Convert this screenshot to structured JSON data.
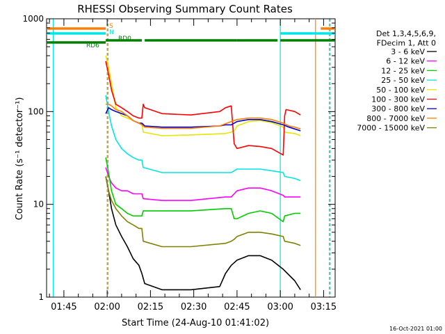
{
  "chart_data": {
    "type": "line",
    "title": "RHESSI Observing Summary Count Rates",
    "xlabel": "Start Time (24-Aug-10 01:41:02)",
    "ylabel": "Count Rate (s⁻¹ detector⁻¹)",
    "yscale": "log",
    "ylim": [
      1,
      1000
    ],
    "xlim_minutes": [
      -2,
      98
    ],
    "x_tick_labels": [
      "01:45",
      "02:00",
      "02:15",
      "02:30",
      "02:45",
      "03:00",
      "03:15"
    ],
    "x_tick_minutes": [
      4,
      19,
      34,
      49,
      64,
      79,
      94
    ],
    "y_tick_labels": [
      "1",
      "10",
      "100",
      "1000"
    ],
    "y_ticks": [
      1,
      10,
      100,
      1000
    ],
    "legend_header": [
      "Det 1,3,4,5,6,9,",
      "FDecim 1, Att 0"
    ],
    "series": [
      {
        "name": "3 - 6 keV",
        "color": "#000000",
        "x": [
          18.5,
          19.5,
          20.5,
          22,
          24,
          26,
          28,
          30,
          31,
          32,
          38,
          48,
          58,
          60,
          62,
          64,
          68,
          72,
          76,
          80,
          84,
          86
        ],
        "y": [
          20,
          14,
          9,
          6,
          4.5,
          3.5,
          2.6,
          2.2,
          1.8,
          1.4,
          1.2,
          1.2,
          1.3,
          1.8,
          2.2,
          2.5,
          2.8,
          2.8,
          2.5,
          2.0,
          1.5,
          1.2
        ]
      },
      {
        "name": "6 - 12 keV",
        "color": "#ff00ff",
        "x": [
          18.5,
          19.5,
          20.5,
          22,
          24,
          26,
          28,
          30,
          31,
          31.5,
          38,
          48,
          60,
          62,
          63,
          64,
          68,
          72,
          76,
          80,
          80.5,
          84,
          86
        ],
        "y": [
          25,
          20,
          17,
          15,
          14,
          14,
          13,
          13,
          13,
          11.5,
          11,
          11,
          12,
          12,
          13,
          14,
          15,
          15,
          14,
          12.5,
          12,
          12,
          12
        ]
      },
      {
        "name": "12 - 25 keV",
        "color": "#00cc00",
        "x": [
          18.5,
          19.5,
          20.5,
          22,
          24,
          26,
          28,
          30,
          31,
          31.5,
          38,
          48,
          60,
          62,
          63,
          64,
          68,
          72,
          76,
          80,
          80.5,
          84,
          86
        ],
        "y": [
          32,
          22,
          14,
          10,
          9,
          8,
          7.5,
          7.5,
          7.5,
          8.5,
          8.5,
          8.5,
          9,
          9,
          7,
          7,
          8,
          8.5,
          8,
          6.5,
          7.5,
          8,
          8
        ]
      },
      {
        "name": "25 - 50 keV",
        "color": "#00e5e5",
        "x": [
          18.5,
          19.5,
          20.5,
          22,
          24,
          26,
          28,
          30,
          31,
          31.5,
          38,
          48,
          60,
          62,
          63,
          64,
          68,
          72,
          76,
          80,
          80.5,
          84,
          86
        ],
        "y": [
          150,
          100,
          70,
          50,
          40,
          35,
          32,
          30,
          30,
          25,
          22,
          22,
          22,
          22,
          23,
          24,
          24,
          24,
          23,
          22,
          20,
          19,
          18
        ]
      },
      {
        "name": "50 - 100 keV",
        "color": "#e5e500",
        "x": [
          18.5,
          19.5,
          20.5,
          22,
          24,
          26,
          28,
          30,
          31,
          31.5,
          38,
          48,
          60,
          62,
          63,
          64,
          68,
          72,
          76,
          80,
          80.5,
          84,
          86
        ],
        "y": [
          400,
          300,
          200,
          110,
          90,
          85,
          80,
          75,
          75,
          60,
          55,
          56,
          58,
          60,
          62,
          70,
          78,
          80,
          76,
          68,
          60,
          58,
          55
        ]
      },
      {
        "name": "100 - 300 keV",
        "color": "#ff0000",
        "x": [
          18.5,
          19.5,
          20.5,
          22,
          24,
          26,
          28,
          30,
          31,
          31.5,
          32,
          38,
          48,
          58,
          60,
          62,
          63,
          64,
          68,
          72,
          76,
          80,
          80.5,
          81,
          84,
          86
        ],
        "y": [
          350,
          250,
          170,
          120,
          110,
          100,
          90,
          85,
          85,
          120,
          110,
          95,
          92,
          100,
          110,
          115,
          45,
          40,
          43,
          42,
          40,
          34,
          90,
          105,
          100,
          92
        ]
      },
      {
        "name": "300 - 800 keV",
        "color": "#0000cc",
        "x": [
          18.5,
          19.5,
          20.5,
          22,
          24,
          26,
          28,
          30,
          31,
          32,
          38,
          48,
          58,
          60,
          62,
          64,
          68,
          72,
          76,
          80,
          82,
          84,
          86
        ],
        "y": [
          95,
          110,
          105,
          100,
          95,
          90,
          80,
          75,
          75,
          70,
          68,
          68,
          70,
          72,
          72,
          78,
          82,
          82,
          78,
          72,
          68,
          65,
          62
        ]
      },
      {
        "name": "800 - 7000 keV",
        "color": "#ff8000",
        "x": [
          18.5,
          19.5,
          20.5,
          22,
          24,
          26,
          28,
          30,
          31,
          32,
          38,
          48,
          58,
          60,
          62,
          64,
          68,
          72,
          76,
          80,
          82,
          84,
          86
        ],
        "y": [
          120,
          120,
          115,
          105,
          100,
          90,
          80,
          75,
          72,
          68,
          66,
          66,
          70,
          74,
          78,
          82,
          85,
          85,
          82,
          75,
          70,
          68,
          65
        ]
      },
      {
        "name": "7000 - 15000 keV",
        "color": "#808000",
        "x": [
          18.5,
          19.5,
          20.5,
          22,
          24,
          26,
          28,
          30,
          31,
          31.5,
          38,
          48,
          60,
          62,
          63,
          64,
          68,
          72,
          76,
          80,
          80.5,
          84,
          86
        ],
        "y": [
          20,
          14,
          11,
          9,
          7.5,
          6.5,
          6,
          5.5,
          5.5,
          4,
          3.5,
          3.5,
          3.8,
          4,
          4.2,
          4.5,
          5,
          5,
          4.8,
          4.5,
          4,
          3.8,
          3.6
        ]
      }
    ],
    "state_bars": [
      {
        "label": "S",
        "color": "#ff8000",
        "segments": [
          [
            -2,
            18.5
          ],
          [
            93,
            98
          ]
        ]
      },
      {
        "label": "N",
        "color": "#00e5e5",
        "segments": [
          [
            -2,
            18.5
          ],
          [
            79,
            98
          ]
        ]
      },
      {
        "label": "RD0",
        "color": "#008000",
        "segments": [
          [
            18.5,
            31
          ],
          [
            32,
            64
          ],
          [
            64,
            78
          ],
          [
            79,
            98
          ]
        ]
      },
      {
        "label": "RD6",
        "color": "#008000",
        "segments": [
          [
            -2,
            18.5
          ]
        ]
      }
    ],
    "vertical_markers": [
      {
        "minute": 0.3,
        "color": "#00e5e5",
        "style": "solid"
      },
      {
        "minute": 19,
        "color": "#ff8000",
        "style": "dashed"
      },
      {
        "minute": 19.3,
        "color": "#00e5e5",
        "style": "dashed"
      },
      {
        "minute": 79,
        "color": "#00e5e5",
        "style": "solid"
      },
      {
        "minute": 91.2,
        "color": "#ff8000",
        "style": "solid"
      },
      {
        "minute": 96,
        "color": "#ff8000",
        "style": "dashed"
      },
      {
        "minute": 96.3,
        "color": "#00e5e5",
        "style": "dashed"
      }
    ]
  },
  "footer_date": "16-Oct-2021 01:00"
}
